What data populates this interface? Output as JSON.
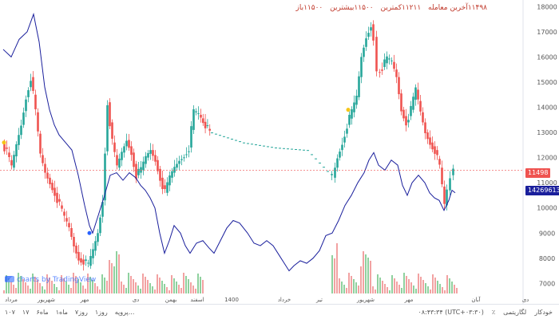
{
  "legend": {
    "open": "۱۱۵۰۰باز",
    "high": "۱۱۵۰۰بیشترین",
    "low": "۱۱۲۱۱کمترین",
    "close": "۱۱۴۹۸آخرین معامله"
  },
  "watermark": "charts by TradingView",
  "price_tags": {
    "close": "11498",
    "indicator": "14269613.18"
  },
  "bottom_bar": {
    "ranges": [
      "۱۰۷",
      "۱۷",
      "۶ماه",
      "ماه۱",
      "۷روز",
      "روز۱",
      "پروپه..."
    ],
    "clock": "۰۸:۴۳:۳۴ (UTC+۰۳:۳۰)",
    "right": [
      "٪",
      "لگاریتمی",
      "خودکار"
    ]
  },
  "colors": {
    "up": "#26a69a",
    "down": "#ef5350",
    "line": "#1a1f9c",
    "dot_start": "#f5c518",
    "dot_mid": "#2962ff",
    "closeline": "#ef5350"
  },
  "chart_data": {
    "type": "candlestick",
    "y_ticks": [
      7000,
      8000,
      9000,
      10000,
      11000,
      12000,
      13000,
      14000,
      15000,
      16000,
      17000,
      18000
    ],
    "ylim": [
      6600,
      18200
    ],
    "x_labels": [
      "مرداد",
      "شهریور",
      "مهر",
      "دی",
      "بهمن",
      "اسفند",
      "1400",
      "خرداد",
      "تیر",
      "شهریور",
      "مهر",
      "آبان",
      "دی"
    ],
    "last_close": 11498,
    "indicator_last": 14269613.18,
    "price": [
      [
        0,
        12600
      ],
      [
        6,
        12200
      ],
      [
        12,
        11600
      ],
      [
        18,
        12500
      ],
      [
        24,
        13300
      ],
      [
        30,
        14400
      ],
      [
        36,
        15200
      ],
      [
        42,
        13800
      ],
      [
        48,
        12100
      ],
      [
        54,
        11400
      ],
      [
        60,
        11000
      ],
      [
        66,
        10600
      ],
      [
        72,
        10100
      ],
      [
        78,
        9600
      ],
      [
        84,
        9200
      ],
      [
        90,
        8500
      ],
      [
        96,
        8000
      ],
      [
        102,
        7900
      ],
      [
        108,
        7700
      ],
      [
        114,
        8300
      ],
      [
        120,
        9000
      ],
      [
        126,
        10300
      ],
      [
        132,
        14200
      ],
      [
        138,
        12600
      ],
      [
        144,
        11600
      ],
      [
        150,
        12200
      ],
      [
        156,
        12700
      ],
      [
        162,
        12200
      ],
      [
        168,
        11300
      ],
      [
        174,
        11500
      ],
      [
        180,
        12000
      ],
      [
        186,
        12300
      ],
      [
        192,
        11900
      ],
      [
        198,
        11200
      ],
      [
        204,
        10600
      ],
      [
        210,
        11200
      ],
      [
        216,
        11600
      ],
      [
        222,
        11900
      ],
      [
        228,
        12100
      ],
      [
        234,
        12400
      ],
      [
        240,
        13800
      ],
      [
        246,
        13700
      ],
      [
        260,
        13000
      ],
      [
        300,
        12600
      ],
      [
        340,
        12400
      ],
      [
        380,
        12300
      ],
      [
        410,
        11300
      ],
      [
        414,
        11200
      ],
      [
        420,
        12000
      ],
      [
        426,
        12600
      ],
      [
        432,
        13300
      ],
      [
        438,
        13800
      ],
      [
        444,
        14400
      ],
      [
        450,
        16000
      ],
      [
        456,
        16800
      ],
      [
        462,
        17300
      ],
      [
        466,
        16800
      ],
      [
        470,
        15400
      ],
      [
        476,
        15600
      ],
      [
        482,
        15900
      ],
      [
        488,
        15800
      ],
      [
        494,
        15200
      ],
      [
        500,
        13900
      ],
      [
        506,
        13400
      ],
      [
        512,
        13900
      ],
      [
        518,
        14700
      ],
      [
        524,
        13800
      ],
      [
        530,
        13000
      ],
      [
        536,
        12600
      ],
      [
        542,
        12300
      ],
      [
        548,
        11600
      ],
      [
        554,
        10100
      ],
      [
        558,
        10700
      ],
      [
        562,
        11300
      ],
      [
        566,
        11500
      ]
    ],
    "indicator_line": [
      [
        0,
        16300
      ],
      [
        10,
        16000
      ],
      [
        20,
        16700
      ],
      [
        30,
        17000
      ],
      [
        38,
        17700
      ],
      [
        45,
        16600
      ],
      [
        52,
        14800
      ],
      [
        58,
        13900
      ],
      [
        64,
        13300
      ],
      [
        70,
        12900
      ],
      [
        78,
        12600
      ],
      [
        86,
        12300
      ],
      [
        94,
        11300
      ],
      [
        102,
        10100
      ],
      [
        108,
        9300
      ],
      [
        112,
        9000
      ],
      [
        118,
        9600
      ],
      [
        126,
        10400
      ],
      [
        134,
        11300
      ],
      [
        142,
        11400
      ],
      [
        150,
        11100
      ],
      [
        158,
        11400
      ],
      [
        166,
        11200
      ],
      [
        172,
        10900
      ],
      [
        178,
        10700
      ],
      [
        184,
        10400
      ],
      [
        190,
        10000
      ],
      [
        196,
        9000
      ],
      [
        202,
        8200
      ],
      [
        208,
        8700
      ],
      [
        214,
        9300
      ],
      [
        222,
        9000
      ],
      [
        228,
        8500
      ],
      [
        234,
        8200
      ],
      [
        242,
        8600
      ],
      [
        250,
        8700
      ],
      [
        258,
        8400
      ],
      [
        264,
        8200
      ],
      [
        272,
        8700
      ],
      [
        280,
        9200
      ],
      [
        288,
        9500
      ],
      [
        296,
        9400
      ],
      [
        306,
        9000
      ],
      [
        314,
        8600
      ],
      [
        322,
        8500
      ],
      [
        330,
        8700
      ],
      [
        338,
        8500
      ],
      [
        346,
        8100
      ],
      [
        352,
        7800
      ],
      [
        358,
        7500
      ],
      [
        364,
        7700
      ],
      [
        372,
        7900
      ],
      [
        380,
        7800
      ],
      [
        388,
        8000
      ],
      [
        396,
        8300
      ],
      [
        404,
        8900
      ],
      [
        412,
        9000
      ],
      [
        420,
        9500
      ],
      [
        428,
        10100
      ],
      [
        436,
        10500
      ],
      [
        444,
        11000
      ],
      [
        452,
        11400
      ],
      [
        458,
        11900
      ],
      [
        464,
        12200
      ],
      [
        470,
        11700
      ],
      [
        478,
        11500
      ],
      [
        486,
        11900
      ],
      [
        494,
        11700
      ],
      [
        500,
        10900
      ],
      [
        506,
        10500
      ],
      [
        512,
        11000
      ],
      [
        520,
        11300
      ],
      [
        528,
        11000
      ],
      [
        534,
        10600
      ],
      [
        540,
        10400
      ],
      [
        546,
        10300
      ],
      [
        552,
        9900
      ],
      [
        558,
        10300
      ],
      [
        562,
        10700
      ],
      [
        566,
        10600
      ]
    ]
  }
}
